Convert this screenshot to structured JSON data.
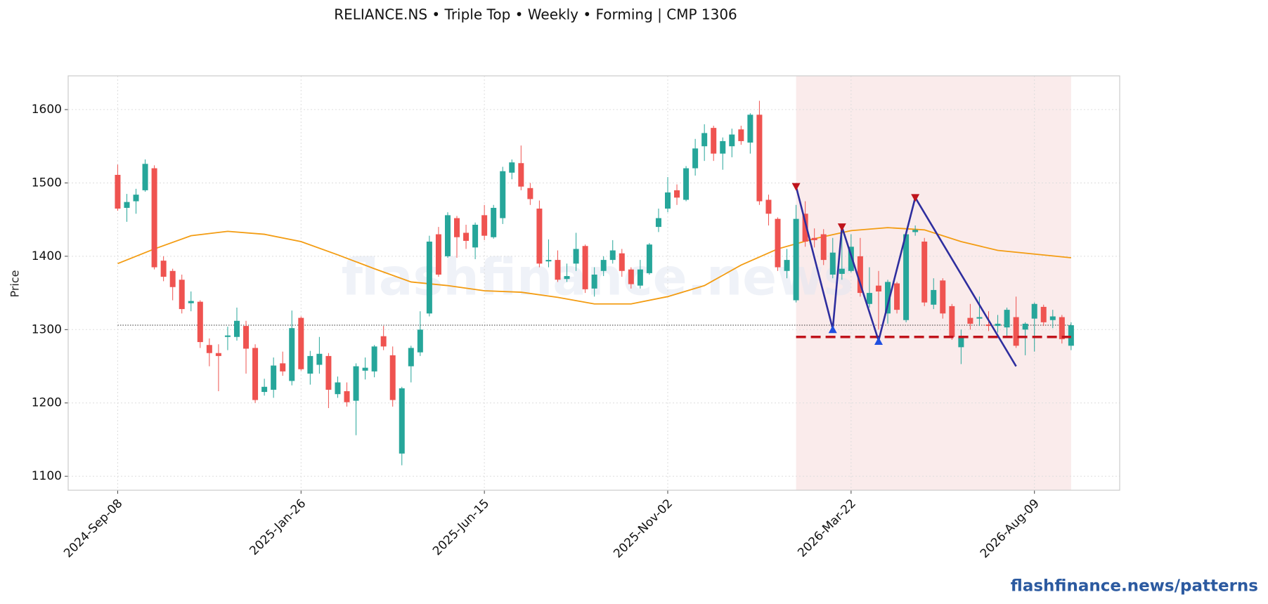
{
  "chart_data": {
    "type": "candlestick",
    "title": "RELIANCE.NS  •  Triple Top  •  Weekly  •  Forming  |  CMP 1306",
    "y_label": "Price",
    "watermark": "flashfinance.news",
    "footer": "flashfinance.news/patterns",
    "xlim": [
      -5.4,
      109.3
    ],
    "ylim": [
      1081,
      1646
    ],
    "xticks": [
      {
        "value": 0,
        "label": "2024-Sep-08"
      },
      {
        "value": 20,
        "label": "2025-Jan-26"
      },
      {
        "value": 40,
        "label": "2025-Jun-15"
      },
      {
        "value": 60,
        "label": "2025-Nov-02"
      },
      {
        "value": 80,
        "label": "2026-Mar-22"
      },
      {
        "value": 100,
        "label": "2026-Aug-09"
      }
    ],
    "yticks": [
      1100,
      1200,
      1300,
      1400,
      1500,
      1600
    ],
    "grid": true,
    "up_color": "#26a69a",
    "down_color": "#ef5350",
    "open": [
      1511,
      1466,
      1475,
      1490,
      1520,
      1394,
      1380,
      1368,
      1336,
      1338,
      1279,
      1268,
      1290,
      1290,
      1305,
      1275,
      1215,
      1218,
      1254,
      1230,
      1316,
      1240,
      1252,
      1264,
      1212,
      1216,
      1203,
      1244,
      1243,
      1291,
      1265,
      1131,
      1250,
      1269,
      1322,
      1430,
      1400,
      1452,
      1432,
      1412,
      1456,
      1426,
      1452,
      1514,
      1527,
      1493,
      1465,
      1393,
      1395,
      1369,
      1390,
      1414,
      1356,
      1380,
      1395,
      1404,
      1382,
      1360,
      1377,
      1440,
      1465,
      1490,
      1477,
      1520,
      1550,
      1575,
      1540,
      1550,
      1573,
      1555,
      1593,
      1477,
      1451,
      1380,
      1340,
      1458,
      1425,
      1430,
      1375,
      1376,
      1380,
      1400,
      1335,
      1360,
      1322,
      1363,
      1313,
      1433,
      1420,
      1334,
      1367,
      1332,
      1276,
      1316,
      1315,
      1307,
      1305,
      1303,
      1317,
      1300,
      1315,
      1331,
      1313,
      1317,
      1278
    ],
    "high": [
      1525,
      1485,
      1492,
      1532,
      1524,
      1400,
      1383,
      1375,
      1352,
      1340,
      1288,
      1280,
      1304,
      1330,
      1312,
      1280,
      1233,
      1262,
      1270,
      1326,
      1318,
      1271,
      1290,
      1268,
      1236,
      1228,
      1254,
      1262,
      1279,
      1305,
      1277,
      1222,
      1278,
      1325,
      1428,
      1440,
      1460,
      1455,
      1443,
      1446,
      1470,
      1470,
      1522,
      1532,
      1551,
      1500,
      1476,
      1423,
      1408,
      1390,
      1432,
      1416,
      1385,
      1400,
      1422,
      1410,
      1385,
      1395,
      1418,
      1465,
      1508,
      1498,
      1523,
      1560,
      1580,
      1578,
      1562,
      1574,
      1578,
      1595,
      1612,
      1484,
      1453,
      1410,
      1470,
      1475,
      1438,
      1437,
      1425,
      1438,
      1430,
      1425,
      1385,
      1380,
      1368,
      1365,
      1435,
      1442,
      1425,
      1370,
      1370,
      1335,
      1300,
      1335,
      1345,
      1325,
      1320,
      1330,
      1345,
      1310,
      1337,
      1334,
      1327,
      1320,
      1310
    ],
    "low": [
      1462,
      1447,
      1458,
      1488,
      1382,
      1366,
      1340,
      1322,
      1325,
      1275,
      1250,
      1216,
      1272,
      1285,
      1240,
      1200,
      1210,
      1207,
      1237,
      1224,
      1244,
      1225,
      1240,
      1193,
      1207,
      1195,
      1156,
      1232,
      1235,
      1272,
      1195,
      1115,
      1228,
      1264,
      1318,
      1372,
      1398,
      1398,
      1410,
      1396,
      1422,
      1424,
      1444,
      1505,
      1490,
      1470,
      1385,
      1385,
      1365,
      1365,
      1380,
      1350,
      1345,
      1373,
      1390,
      1372,
      1356,
      1356,
      1375,
      1433,
      1460,
      1470,
      1475,
      1510,
      1530,
      1530,
      1518,
      1535,
      1552,
      1540,
      1470,
      1442,
      1380,
      1370,
      1337,
      1413,
      1412,
      1388,
      1370,
      1368,
      1378,
      1345,
      1330,
      1300,
      1308,
      1322,
      1310,
      1428,
      1332,
      1328,
      1315,
      1286,
      1253,
      1300,
      1305,
      1298,
      1296,
      1290,
      1275,
      1265,
      1270,
      1305,
      1302,
      1281,
      1272
    ],
    "close": [
      1465,
      1474,
      1484,
      1526,
      1385,
      1372,
      1358,
      1328,
      1339,
      1283,
      1268,
      1264,
      1292,
      1312,
      1274,
      1204,
      1222,
      1251,
      1243,
      1302,
      1246,
      1264,
      1267,
      1218,
      1228,
      1201,
      1250,
      1248,
      1277,
      1277,
      1204,
      1220,
      1275,
      1300,
      1420,
      1375,
      1456,
      1426,
      1421,
      1443,
      1428,
      1466,
      1516,
      1528,
      1495,
      1478,
      1390,
      1395,
      1368,
      1373,
      1410,
      1355,
      1375,
      1395,
      1408,
      1380,
      1362,
      1382,
      1416,
      1452,
      1487,
      1480,
      1520,
      1547,
      1568,
      1540,
      1557,
      1566,
      1557,
      1593,
      1475,
      1458,
      1385,
      1395,
      1451,
      1420,
      1422,
      1395,
      1405,
      1383,
      1413,
      1350,
      1350,
      1352,
      1365,
      1327,
      1430,
      1436,
      1337,
      1354,
      1322,
      1290,
      1290,
      1308,
      1317,
      1305,
      1308,
      1327,
      1278,
      1308,
      1335,
      1310,
      1318,
      1287,
      1306
    ],
    "moving_average": {
      "color": "#f39c12",
      "x": [
        0,
        4,
        8,
        12,
        16,
        20,
        24,
        28,
        32,
        36,
        40,
        44,
        48,
        52,
        56,
        60,
        64,
        68,
        72,
        76,
        80,
        84,
        88,
        92,
        96,
        100,
        104
      ],
      "values": [
        1390,
        1410,
        1428,
        1434,
        1430,
        1420,
        1402,
        1383,
        1365,
        1360,
        1353,
        1351,
        1344,
        1335,
        1335,
        1345,
        1360,
        1388,
        1410,
        1424,
        1435,
        1439,
        1436,
        1420,
        1408,
        1403,
        1398
      ]
    },
    "cmp_line": 1306,
    "pattern_zone": {
      "x": [
        74,
        104
      ],
      "color": "#f6dede"
    },
    "pattern": {
      "color": "#2e2e9e",
      "x": [
        74,
        78,
        79,
        83,
        87,
        98
      ],
      "values": [
        1495,
        1301,
        1440,
        1285,
        1480,
        1250
      ]
    },
    "peaks": {
      "color": "#c0141c",
      "x": [
        74,
        79,
        87
      ],
      "values": [
        1495,
        1440,
        1480
      ]
    },
    "troughs": {
      "color": "#1f4fe0",
      "x": [
        78,
        83
      ],
      "values": [
        1301,
        1285
      ]
    },
    "neckline": {
      "color": "#c0141c",
      "value": 1290,
      "x": [
        74,
        104
      ]
    }
  }
}
